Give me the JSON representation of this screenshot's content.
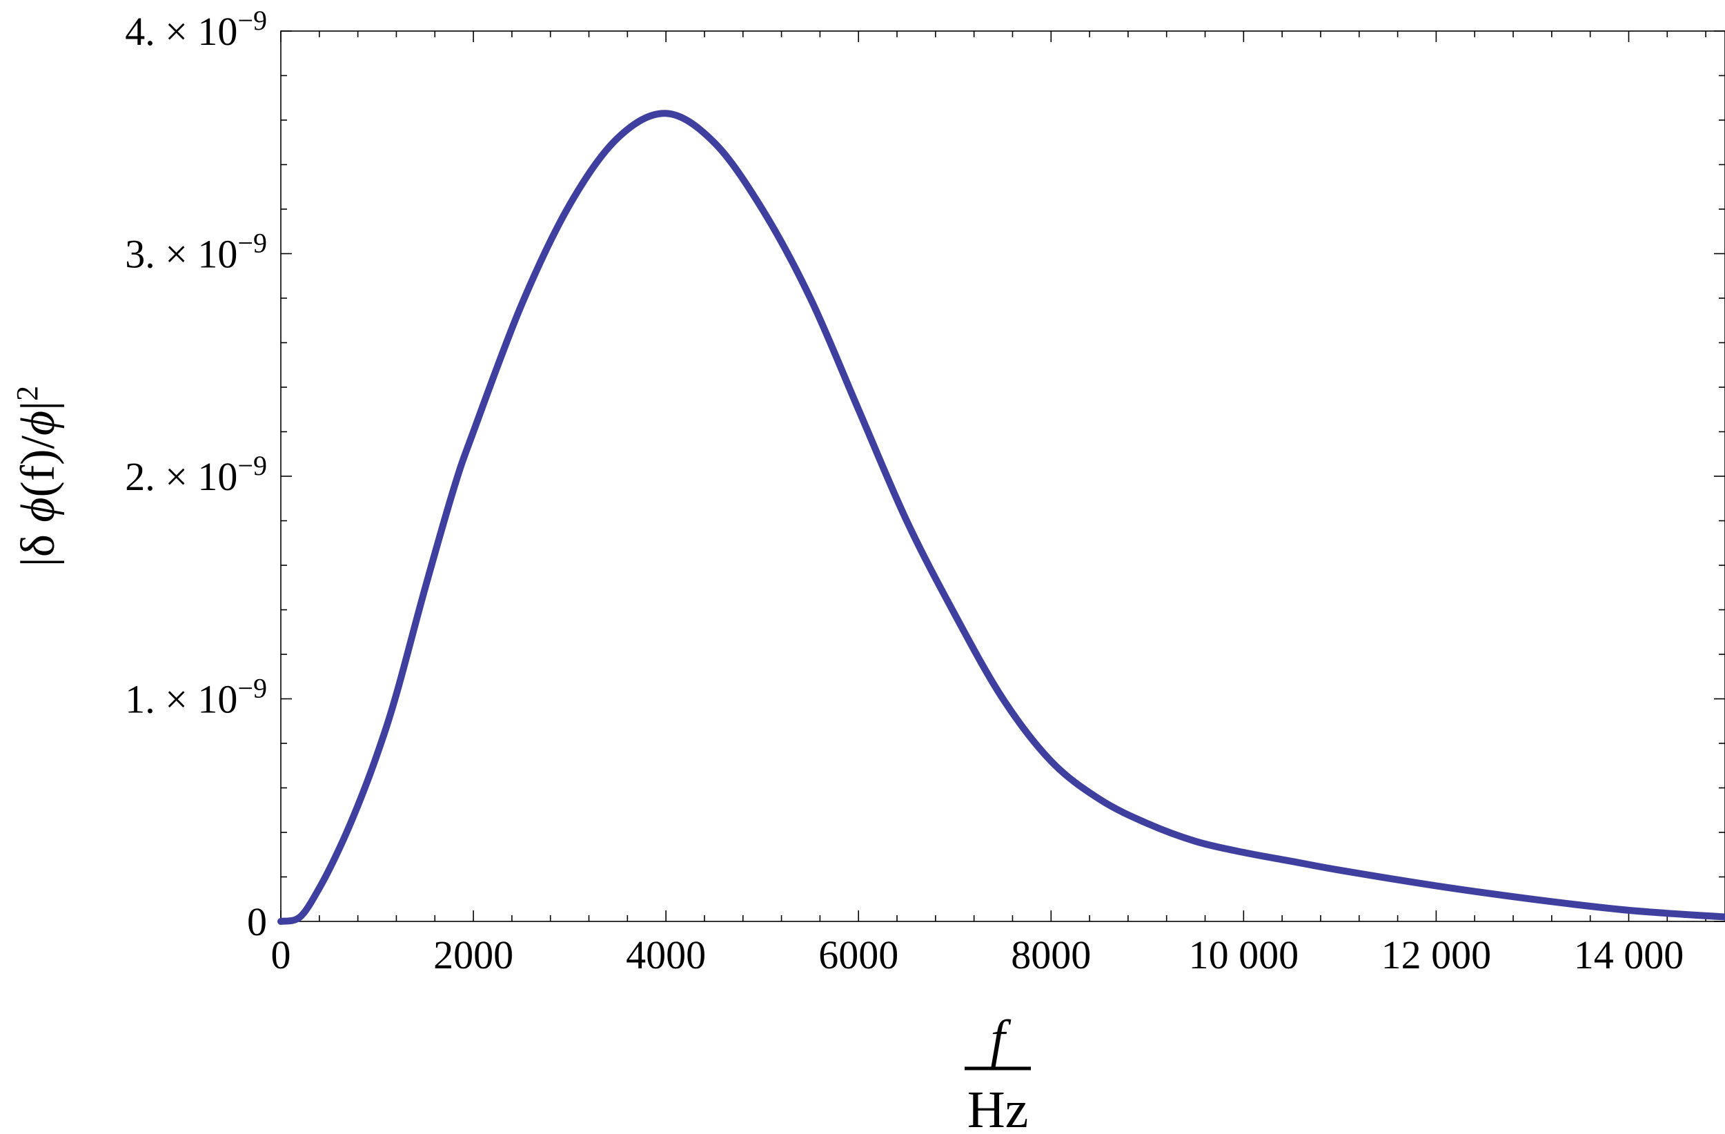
{
  "chart_data": {
    "type": "line",
    "title": "",
    "xlabel": {
      "numerator": "f",
      "denominator": "Hz"
    },
    "ylabel": {
      "pre": "|δ ",
      "phi1": "ϕ",
      "mid": "(f)/",
      "phi2": "ϕ",
      "post": "|",
      "sup": "2"
    },
    "xlim": [
      0,
      15000
    ],
    "ylim": [
      0,
      4e-09
    ],
    "grid": false,
    "legend": "none",
    "x_ticks": [
      {
        "value": 0,
        "label": "0"
      },
      {
        "value": 2000,
        "label": "2000"
      },
      {
        "value": 4000,
        "label": "4000"
      },
      {
        "value": 6000,
        "label": "6000"
      },
      {
        "value": 8000,
        "label": "8000"
      },
      {
        "value": 10000,
        "label": "10 000"
      },
      {
        "value": 12000,
        "label": "12 000"
      },
      {
        "value": 14000,
        "label": "14 000"
      }
    ],
    "y_ticks": [
      {
        "value": 0,
        "mantissa": "0",
        "exponent": ""
      },
      {
        "value": 1e-09,
        "mantissa": "1. × 10",
        "exponent": "−9"
      },
      {
        "value": 2e-09,
        "mantissa": "2. × 10",
        "exponent": "−9"
      },
      {
        "value": 3e-09,
        "mantissa": "3. × 10",
        "exponent": "−9"
      },
      {
        "value": 4e-09,
        "mantissa": "4. × 10",
        "exponent": "−9"
      }
    ],
    "series": [
      {
        "color": "#3f3f9f",
        "x": [
          0,
          200,
          400,
          600,
          800,
          1000,
          1200,
          1500,
          1800,
          2000,
          2500,
          3000,
          3500,
          4000,
          4500,
          5000,
          5500,
          6000,
          6500,
          7000,
          7500,
          8000,
          8500,
          9000,
          9500,
          10000,
          10500,
          11000,
          12000,
          13000,
          14000,
          15000
        ],
        "y": [
          0,
          2e-11,
          1.5e-10,
          3.2e-10,
          5.2e-10,
          7.5e-10,
          1.02e-09,
          1.5e-09,
          1.95e-09,
          2.2e-09,
          2.77e-09,
          3.22e-09,
          3.52e-09,
          3.63e-09,
          3.5e-09,
          3.2e-09,
          2.8e-09,
          2.3e-09,
          1.8e-09,
          1.38e-09,
          1e-09,
          7.2e-10,
          5.5e-10,
          4.4e-10,
          3.6e-10,
          3.1e-10,
          2.7e-10,
          2.3e-10,
          1.6e-10,
          1e-10,
          5e-11,
          2e-11
        ]
      }
    ]
  }
}
